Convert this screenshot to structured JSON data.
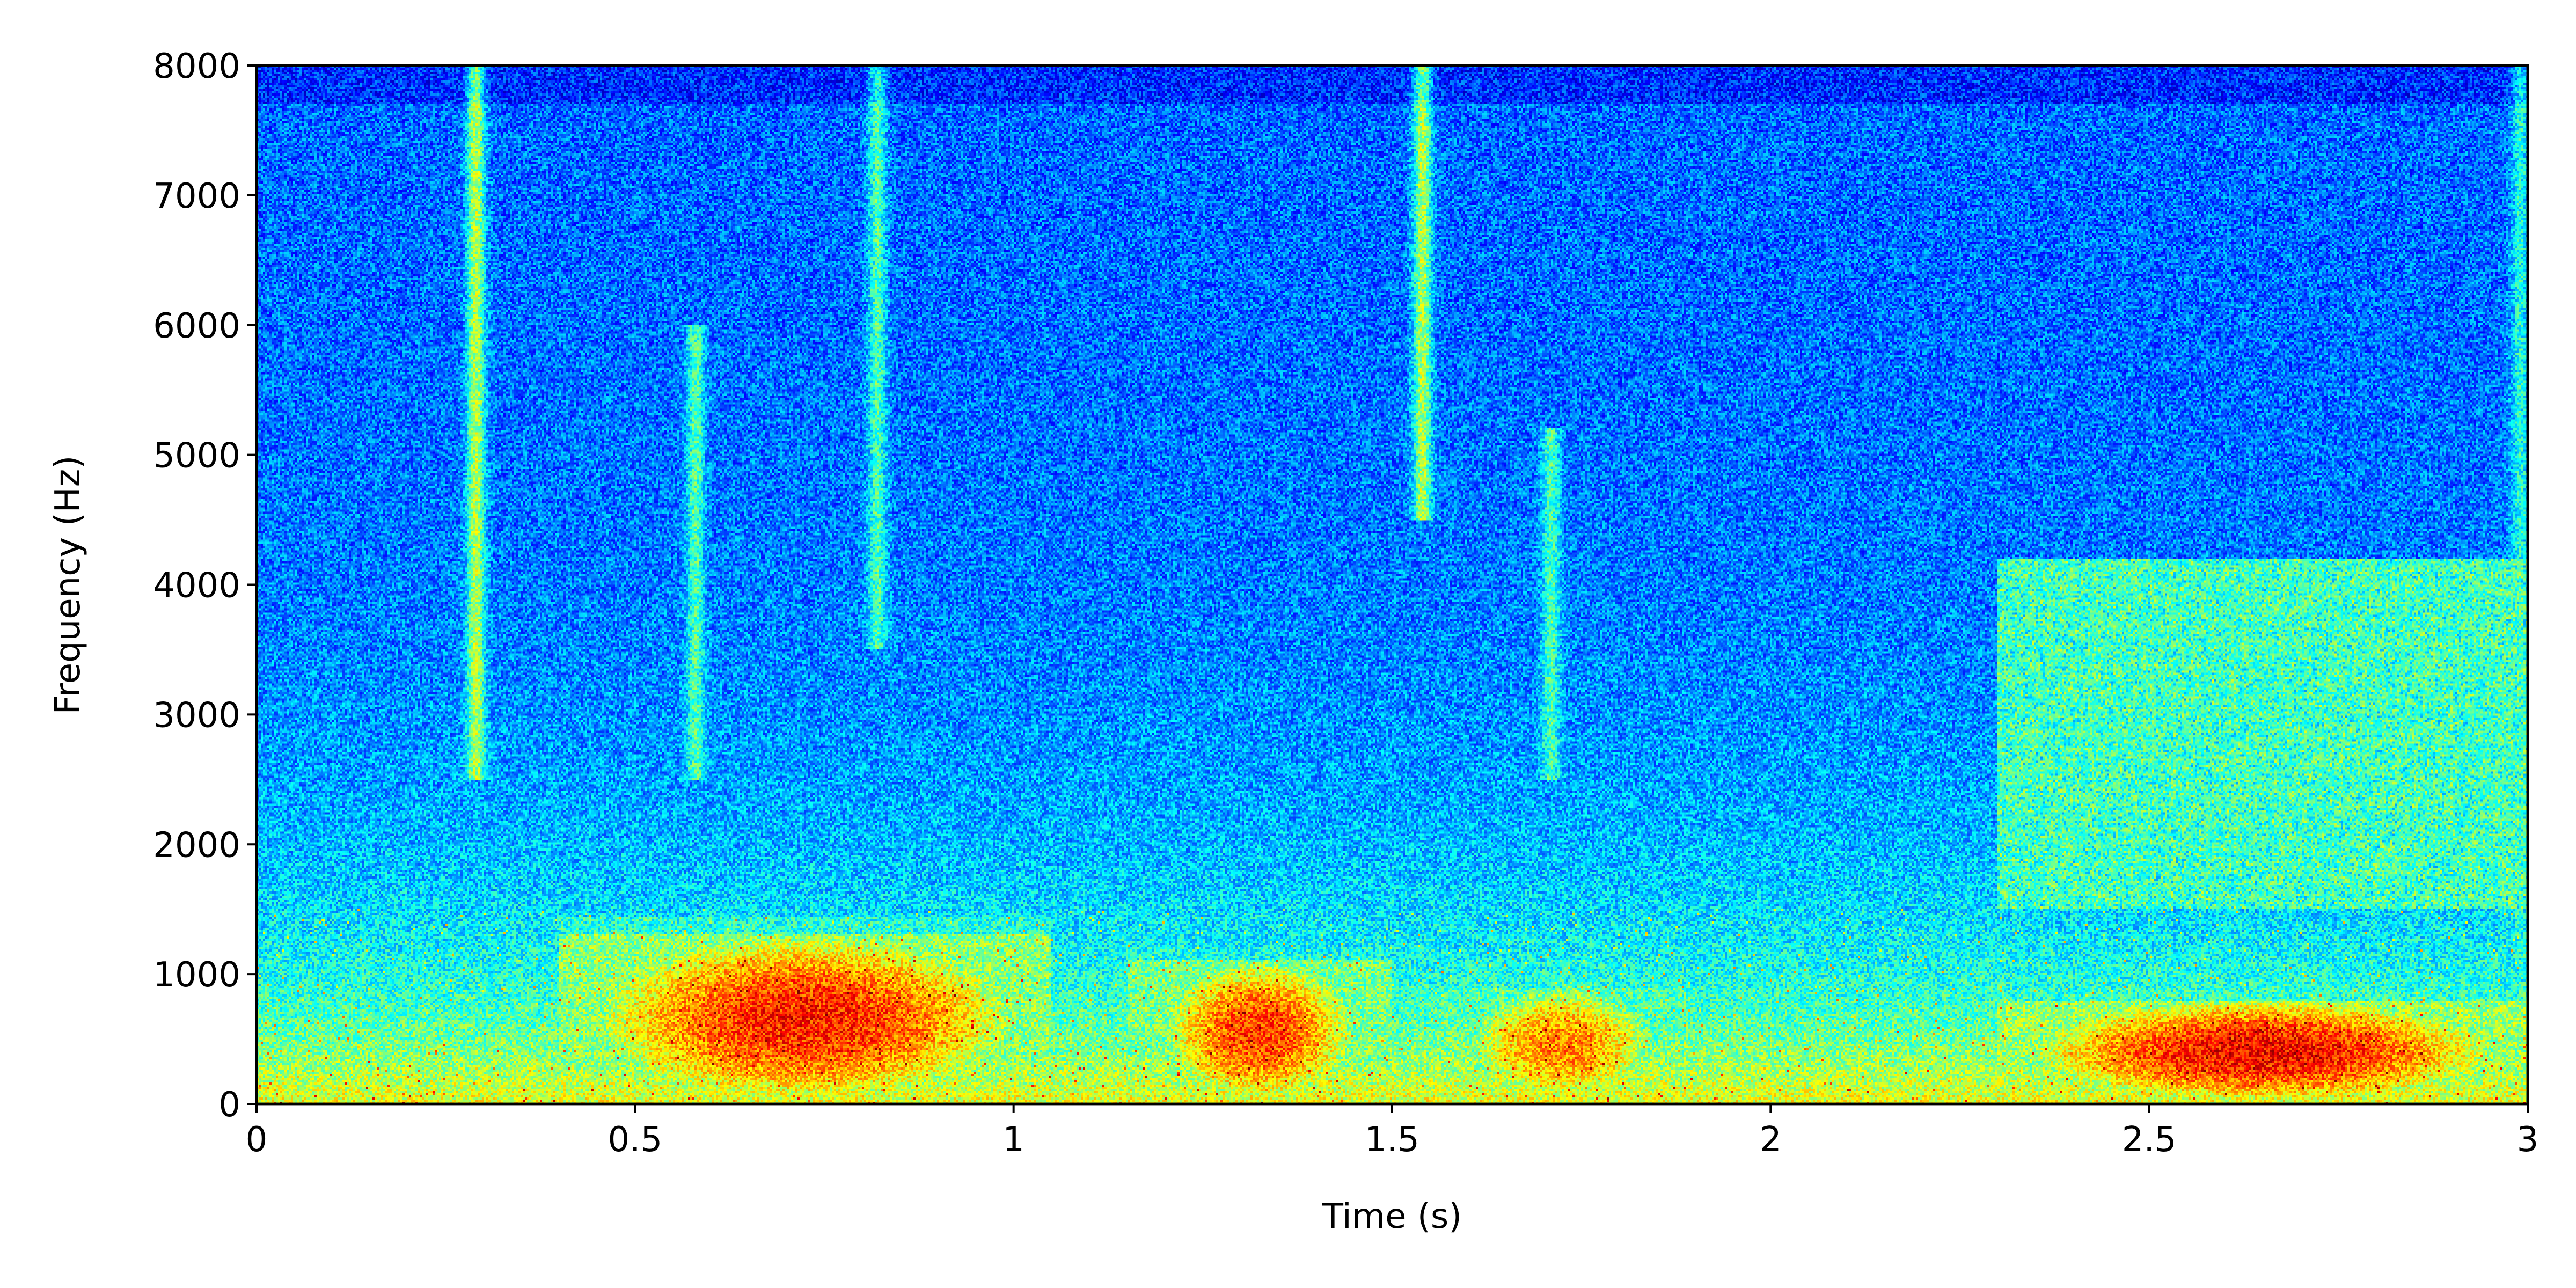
{
  "chart_data": {
    "type": "heatmap",
    "subtype": "spectrogram",
    "title": "",
    "xlabel": "Time (s)",
    "ylabel": "Frequency (Hz)",
    "xlim": [
      0,
      3
    ],
    "ylim": [
      0,
      8000
    ],
    "x_unit": "s",
    "y_unit": "Hz",
    "x_ticks": [
      0,
      0.5,
      1,
      1.5,
      2,
      2.5,
      3
    ],
    "x_tick_labels": [
      "0",
      "0.5",
      "1",
      "1.5",
      "2",
      "2.5",
      "3"
    ],
    "y_ticks": [
      0,
      1000,
      2000,
      3000,
      4000,
      5000,
      6000,
      7000,
      8000
    ],
    "y_tick_labels": [
      "0",
      "1000",
      "2000",
      "3000",
      "4000",
      "5000",
      "6000",
      "7000",
      "8000"
    ],
    "grid": false,
    "colorbar": false,
    "colormap": "jet",
    "colormap_stops": [
      "#00007f",
      "#0000ff",
      "#007fff",
      "#00ffff",
      "#7fff7f",
      "#ffff00",
      "#ff7f00",
      "#ff0000",
      "#7f0000"
    ],
    "value_scale": "relative intensity 0-1 (approximate)",
    "features": {
      "low_frequency_energy": [
        {
          "t0": 0.45,
          "t1": 1.0,
          "f0": 0,
          "f1": 1300,
          "level": 0.85
        },
        {
          "t0": 1.2,
          "t1": 1.45,
          "f0": 0,
          "f1": 1100,
          "level": 0.82
        },
        {
          "t0": 1.6,
          "t1": 1.85,
          "f0": 0,
          "f1": 900,
          "level": 0.75
        },
        {
          "t0": 2.35,
          "t1": 2.95,
          "f0": 0,
          "f1": 800,
          "level": 0.88
        }
      ],
      "broadband_streaks": [
        {
          "t": 0.29,
          "f0": 2500,
          "f1": 8000,
          "level": 0.55
        },
        {
          "t": 0.58,
          "f0": 2500,
          "f1": 6000,
          "level": 0.45
        },
        {
          "t": 0.82,
          "f0": 3500,
          "f1": 8000,
          "level": 0.45
        },
        {
          "t": 1.54,
          "f0": 4500,
          "f1": 8000,
          "level": 0.55
        },
        {
          "t": 1.71,
          "f0": 2500,
          "f1": 5200,
          "level": 0.45
        },
        {
          "t": 2.99,
          "f0": 0,
          "f1": 8000,
          "level": 0.4
        }
      ],
      "midband_patch": {
        "t0": 2.3,
        "t1": 3.0,
        "f0": 1500,
        "f1": 4200,
        "level": 0.5
      }
    }
  }
}
